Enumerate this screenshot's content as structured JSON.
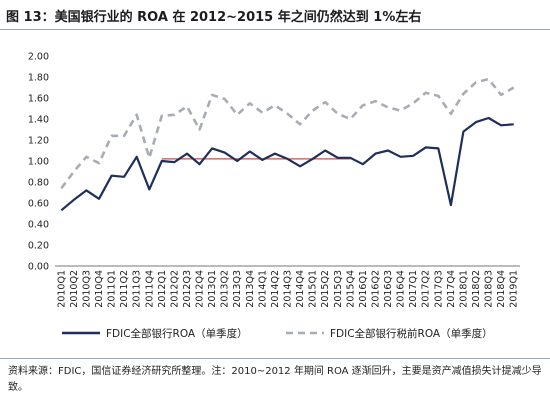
{
  "title": "图 13：美国银行业的 ROA 在 2012~2015 年之间仍然达到 1%左右",
  "source": "资料来源：FDIC，国信证券经济研究所整理。注：2010~2012 年期间 ROA 逐渐回升，主要是资产减值损失计提减少导致。",
  "chart_data": {
    "type": "line",
    "categories": [
      "2010Q1",
      "2010Q2",
      "2010Q3",
      "2010Q4",
      "2011Q1",
      "2011Q2",
      "2011Q3",
      "2011Q4",
      "2012Q1",
      "2012Q2",
      "2012Q3",
      "2012Q4",
      "2013Q1",
      "2013Q2",
      "2013Q3",
      "2013Q4",
      "2014Q1",
      "2014Q2",
      "2014Q3",
      "2014Q4",
      "2015Q1",
      "2015Q2",
      "2015Q3",
      "2015Q4",
      "2016Q1",
      "2016Q2",
      "2016Q3",
      "2016Q4",
      "2017Q1",
      "2017Q2",
      "2017Q3",
      "2017Q4",
      "2018Q1",
      "2018Q2",
      "2018Q3",
      "2018Q4",
      "2019Q1"
    ],
    "tick_labels": [
      "2010Q1",
      "2010Q3",
      "2011Q1",
      "2011Q3",
      "2012Q1",
      "2012Q3",
      "2013Q1",
      "2013Q3",
      "2014Q1",
      "2014Q3",
      "2015Q1",
      "2015Q3",
      "2016Q1",
      "2016Q3",
      "2017Q1",
      "2017Q3",
      "2018Q1",
      "2018Q3",
      "2010Q2",
      "2010Q4",
      "2011Q2",
      "2011Q4",
      "2012Q2",
      "2012Q4",
      "2013Q2",
      "2013Q4",
      "2014Q2",
      "2014Q4",
      "2015Q2",
      "2015Q4",
      "2016Q2",
      "2016Q4",
      "2017Q2",
      "2017Q4",
      "2018Q2",
      "2018Q4",
      "2019Q1"
    ],
    "yticks": [
      "0.00",
      "0.20",
      "0.40",
      "0.60",
      "0.80",
      "1.00",
      "1.20",
      "1.40",
      "1.60",
      "1.80",
      "2.00"
    ],
    "ylim": [
      0,
      2
    ],
    "series": [
      {
        "name": "FDIC全部银行ROA（单季度）",
        "style": "solid",
        "color": "#1f2f5c",
        "values": [
          0.53,
          0.63,
          0.72,
          0.64,
          0.86,
          0.85,
          1.04,
          0.73,
          1.0,
          0.99,
          1.07,
          0.97,
          1.12,
          1.08,
          1.0,
          1.09,
          1.01,
          1.07,
          1.02,
          0.95,
          1.02,
          1.1,
          1.03,
          1.03,
          0.97,
          1.07,
          1.1,
          1.04,
          1.05,
          1.13,
          1.12,
          0.58,
          1.28,
          1.37,
          1.41,
          1.34,
          1.35
        ]
      },
      {
        "name": "FDIC全部银行税前ROA（单季度）",
        "style": "dashed",
        "color": "#a8acb4",
        "values": [
          0.74,
          0.9,
          1.04,
          0.98,
          1.24,
          1.24,
          1.44,
          1.03,
          1.43,
          1.44,
          1.52,
          1.3,
          1.63,
          1.59,
          1.44,
          1.55,
          1.46,
          1.53,
          1.45,
          1.35,
          1.48,
          1.56,
          1.45,
          1.4,
          1.53,
          1.57,
          1.51,
          1.48,
          1.55,
          1.65,
          1.62,
          1.45,
          1.64,
          1.75,
          1.78,
          1.63,
          1.7
        ]
      }
    ],
    "reference_line": {
      "value": 1.02,
      "from": "2012Q1",
      "to": "2015Q4",
      "color": "#d24a4a"
    },
    "legend_position": "bottom",
    "grid": false
  }
}
